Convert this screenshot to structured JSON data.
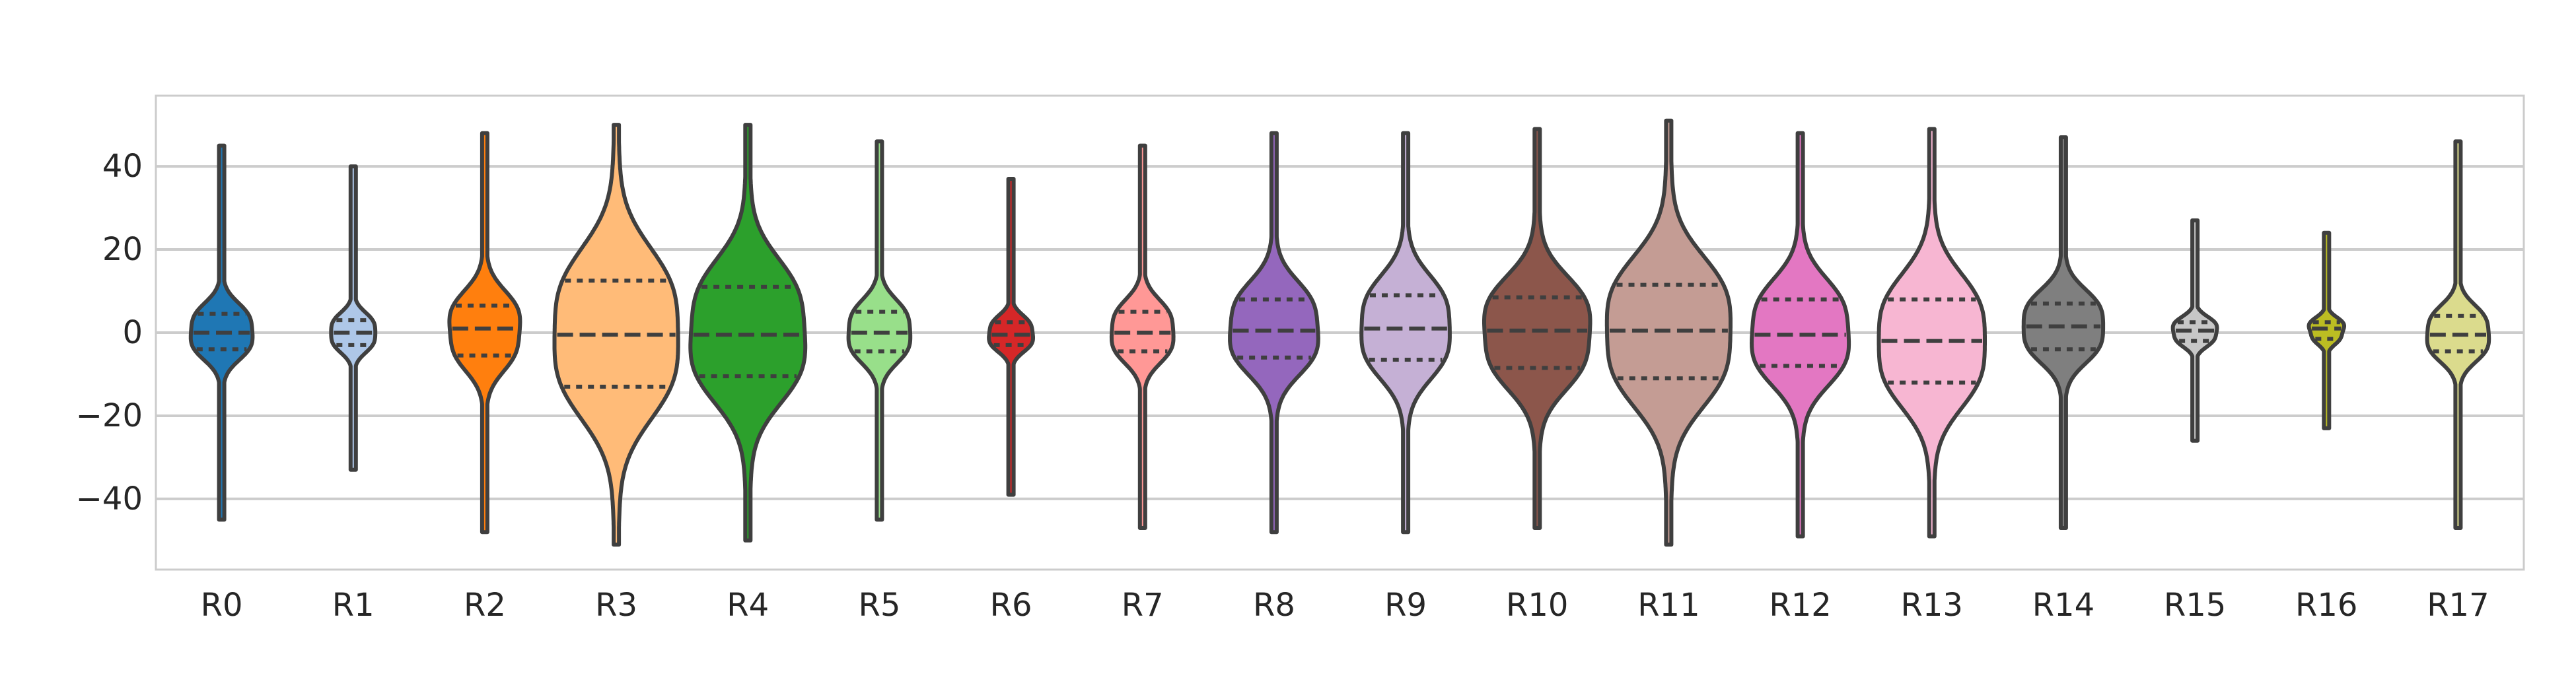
{
  "chart_data": {
    "type": "violin",
    "title": "",
    "xlabel": "",
    "ylabel": "",
    "ylim": [
      -57,
      57
    ],
    "y_ticks": [
      -40,
      -20,
      0,
      20,
      40
    ],
    "y_tick_labels": [
      "−40",
      "−20",
      "0",
      "20",
      "40"
    ],
    "grid": "horizontal",
    "inner": "quartile",
    "categories": [
      "R0",
      "R1",
      "R2",
      "R3",
      "R4",
      "R5",
      "R6",
      "R7",
      "R8",
      "R9",
      "R10",
      "R11",
      "R12",
      "R13",
      "R14",
      "R15",
      "R16",
      "R17"
    ],
    "series": [
      {
        "category": "R0",
        "color": "#1f77b4",
        "min": -45,
        "q1": -4,
        "median": 0,
        "q3": 4.5,
        "max": 45,
        "body_halfwidth": 7
      },
      {
        "category": "R1",
        "color": "#aec7e8",
        "min": -33,
        "q1": -3,
        "median": 0,
        "q3": 3,
        "max": 40,
        "body_halfwidth": 5
      },
      {
        "category": "R2",
        "color": "#ff7f0e",
        "min": -48,
        "q1": -5.5,
        "median": 1,
        "q3": 6.5,
        "max": 48,
        "body_halfwidth": 8
      },
      {
        "category": "R3",
        "color": "#ffbb78",
        "min": -51,
        "q1": -13,
        "median": -0.5,
        "q3": 12.5,
        "max": 50,
        "body_halfwidth": 14
      },
      {
        "category": "R4",
        "color": "#2ca02c",
        "min": -50,
        "q1": -10.5,
        "median": -0.5,
        "q3": 11,
        "max": 50,
        "body_halfwidth": 13
      },
      {
        "category": "R5",
        "color": "#98df8a",
        "min": -45,
        "q1": -4.5,
        "median": 0,
        "q3": 5,
        "max": 46,
        "body_halfwidth": 7
      },
      {
        "category": "R6",
        "color": "#d62728",
        "min": -39,
        "q1": -3,
        "median": -0.5,
        "q3": 2.5,
        "max": 37,
        "body_halfwidth": 5
      },
      {
        "category": "R7",
        "color": "#ff9896",
        "min": -47,
        "q1": -4.5,
        "median": 0,
        "q3": 5,
        "max": 45,
        "body_halfwidth": 7
      },
      {
        "category": "R8",
        "color": "#9467bd",
        "min": -48,
        "q1": -6,
        "median": 0.5,
        "q3": 8,
        "max": 48,
        "body_halfwidth": 10
      },
      {
        "category": "R9",
        "color": "#c5b0d5",
        "min": -48,
        "q1": -6.5,
        "median": 1,
        "q3": 9,
        "max": 48,
        "body_halfwidth": 10
      },
      {
        "category": "R10",
        "color": "#8c564b",
        "min": -47,
        "q1": -8.5,
        "median": 0.5,
        "q3": 8.5,
        "max": 49,
        "body_halfwidth": 12
      },
      {
        "category": "R11",
        "color": "#c49c94",
        "min": -51,
        "q1": -11,
        "median": 0.5,
        "q3": 11.5,
        "max": 51,
        "body_halfwidth": 14
      },
      {
        "category": "R12",
        "color": "#e377c2",
        "min": -49,
        "q1": -8,
        "median": -0.5,
        "q3": 8,
        "max": 48,
        "body_halfwidth": 11
      },
      {
        "category": "R13",
        "color": "#f7b6d2",
        "min": -49,
        "q1": -12,
        "median": -2,
        "q3": 8,
        "max": 49,
        "body_halfwidth": 12
      },
      {
        "category": "R14",
        "color": "#7f7f7f",
        "min": -47,
        "q1": -4,
        "median": 1.5,
        "q3": 7,
        "max": 47,
        "body_halfwidth": 9
      },
      {
        "category": "R15",
        "color": "#c7c7c7",
        "min": -26,
        "q1": -2,
        "median": 0.5,
        "q3": 2.5,
        "max": 27,
        "body_halfwidth": 5
      },
      {
        "category": "R16",
        "color": "#bcbd22",
        "min": -23,
        "q1": -1.5,
        "median": 1,
        "q3": 2.5,
        "max": 24,
        "body_halfwidth": 4
      },
      {
        "category": "R17",
        "color": "#dbdb8d",
        "min": -47,
        "q1": -4.5,
        "median": -0.5,
        "q3": 4,
        "max": 46,
        "body_halfwidth": 7
      }
    ]
  }
}
